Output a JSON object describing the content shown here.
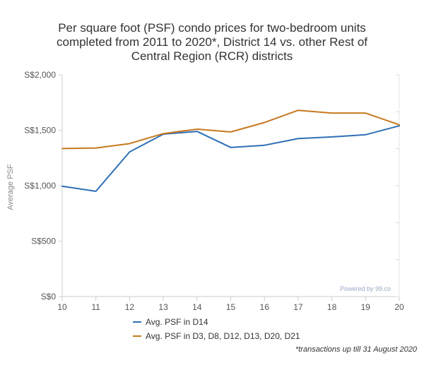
{
  "title_lines": [
    "Per square foot (PSF) condo prices for two-bedroom units",
    "completed from 2011 to 2020*, District 14 vs. other Rest of",
    "Central Region (RCR) districts"
  ],
  "footnote": "*transactions up till 31 August 2020",
  "watermark": "Powered by 99.co",
  "chart_data": {
    "type": "line",
    "title": "Per square foot (PSF) condo prices for two-bedroom units completed from 2011 to 2020*, District 14 vs. other Rest of Central Region (RCR) districts",
    "xlabel": "",
    "ylabel": "Average PSF",
    "x": [
      10,
      11,
      12,
      13,
      14,
      15,
      16,
      17,
      18,
      19,
      20
    ],
    "x_tick_labels": [
      "10",
      "11",
      "12",
      "13",
      "14",
      "15",
      "16",
      "17",
      "18",
      "19",
      "20"
    ],
    "y_ticks": [
      0,
      500,
      1000,
      1500,
      2000
    ],
    "y_tick_labels": [
      "S$0",
      "S$500",
      "S$1,000",
      "S$1,500",
      "S$2,000"
    ],
    "ylim": [
      0,
      2000
    ],
    "xlim": [
      10,
      20
    ],
    "grid": false,
    "legend_position": "bottom",
    "series": [
      {
        "name": "Avg. PSF in D14",
        "color": "#2e6fb7",
        "values": [
          995,
          950,
          1305,
          1465,
          1490,
          1345,
          1365,
          1425,
          1440,
          1460,
          1540
        ]
      },
      {
        "name": "Avg. PSF in D3, D8, D12, D13, D20, D21",
        "color": "#c6791f",
        "values": [
          1335,
          1340,
          1380,
          1470,
          1510,
          1485,
          1570,
          1680,
          1655,
          1655,
          1550
        ]
      }
    ]
  }
}
